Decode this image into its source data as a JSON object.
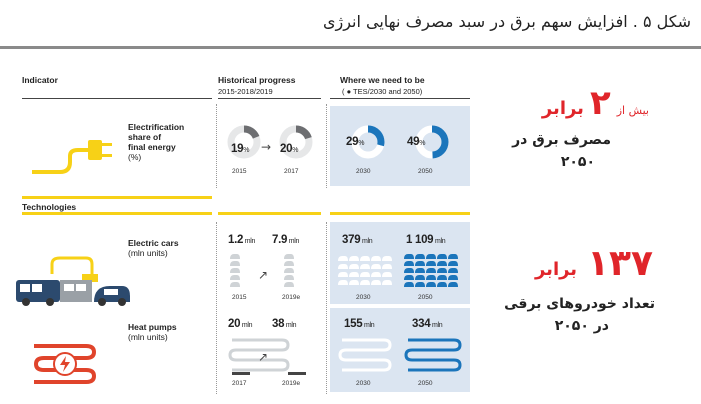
{
  "title": "شکل ۵ . افزایش سهم برق در سبد مصرف نهایی انرژی",
  "table": {
    "col_indicator": "Indicator",
    "col_hist_title": "Historical progress",
    "col_hist_sub": "2015-2018/2019",
    "col_need_title": "Where we need to be",
    "col_need_sub": "( ● TES/2030 and 2050)",
    "section_tech": "Technologies",
    "rows": {
      "electrification": {
        "label_line1": "Electrification",
        "label_line2": "share of",
        "label_line3": "final energy",
        "label_unit": "(%)",
        "hist": [
          {
            "value": "19",
            "unit": "%",
            "year": "2015",
            "fraction": 0.19
          },
          {
            "value": "20",
            "unit": "%",
            "year": "2017",
            "fraction": 0.2
          }
        ],
        "need": [
          {
            "value": "29",
            "unit": "%",
            "year": "2030",
            "fraction": 0.29
          },
          {
            "value": "49",
            "unit": "%",
            "year": "2050",
            "fraction": 0.49
          }
        ]
      },
      "cars": {
        "label_line1": "Electric cars",
        "label_unit": "(mln units)",
        "hist": [
          {
            "value": "1.2",
            "unit": "mln",
            "year": "2015"
          },
          {
            "value": "7.9",
            "unit": "mln",
            "year": "2019e"
          }
        ],
        "need": [
          {
            "value": "379",
            "unit": "mln",
            "year": "2030"
          },
          {
            "value": "1 109",
            "unit": "mln",
            "year": "2050"
          }
        ]
      },
      "heatpumps": {
        "label_line1": "Heat pumps",
        "label_unit": "(mln units)",
        "hist": [
          {
            "value": "20",
            "unit": "mln",
            "year": "2017"
          },
          {
            "value": "38",
            "unit": "mln",
            "year": "2019e"
          }
        ],
        "need": [
          {
            "value": "155",
            "unit": "mln",
            "year": "2030"
          },
          {
            "value": "334",
            "unit": "mln",
            "year": "2050"
          }
        ]
      }
    }
  },
  "callout1": {
    "prefix": "بیش از",
    "number": "۲",
    "word": "برابر",
    "desc_line1": "مصرف برق در",
    "desc_line2": "۲۰۵۰"
  },
  "callout2": {
    "number": "۱۳۷",
    "word": "برابر",
    "desc_line1": "تعداد خودروهای برقی",
    "desc_line2": "در ۲۰۵۰"
  },
  "colors": {
    "accent_blue": "#1b75bb",
    "panel_blue": "#dbe5f1",
    "yellow": "#f7d117",
    "red_callout": "#e0252a",
    "car_navy": "#2c4a6e",
    "heat_red": "#e0442b"
  }
}
